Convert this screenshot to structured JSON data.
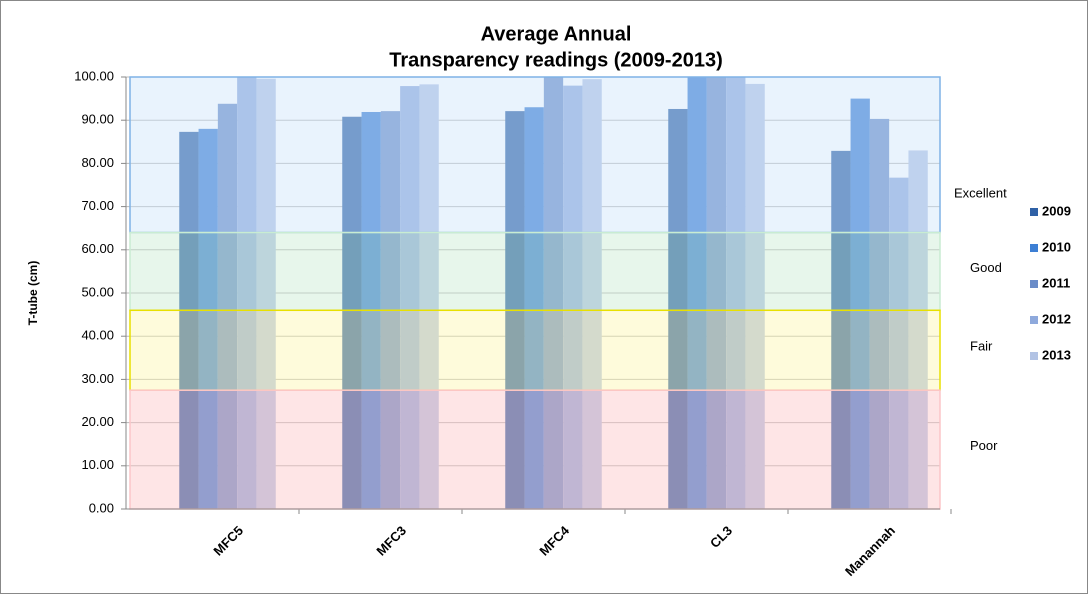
{
  "chart_data": {
    "type": "bar",
    "title": [
      "Average Annual",
      "Transparency readings (2009-2013)"
    ],
    "y_label": "T-tube (cm)",
    "categories": [
      "MFC5",
      "MFC3",
      "MFC4",
      "CL3",
      "Manannah"
    ],
    "series": [
      {
        "name": "2009",
        "color": "#2f61a6",
        "values": [
          87.3,
          90.8,
          92.1,
          92.6,
          82.9
        ]
      },
      {
        "name": "2010",
        "color": "#3d7fd4",
        "values": [
          88.0,
          91.9,
          93.0,
          100.0,
          95.0
        ]
      },
      {
        "name": "2011",
        "color": "#6a8cc8",
        "values": [
          93.8,
          92.1,
          100.0,
          100.0,
          90.3
        ]
      },
      {
        "name": "2012",
        "color": "#8ea9dc",
        "values": [
          100.0,
          97.9,
          98.0,
          100.0,
          76.7
        ]
      },
      {
        "name": "2013",
        "color": "#b2c3e4",
        "values": [
          99.6,
          98.3,
          99.5,
          98.4,
          83.0
        ]
      }
    ],
    "ylim": [
      0,
      100
    ],
    "yticks": [
      {
        "value": 0,
        "label": "0.00"
      },
      {
        "value": 10,
        "label": "10.00"
      },
      {
        "value": 20,
        "label": "20.00"
      },
      {
        "value": 30,
        "label": "30.00"
      },
      {
        "value": 40,
        "label": "40.00"
      },
      {
        "value": 50,
        "label": "50.00"
      },
      {
        "value": 60,
        "label": "60.00"
      },
      {
        "value": 70,
        "label": "70.00"
      },
      {
        "value": 80,
        "label": "80.00"
      },
      {
        "value": 90,
        "label": "90.00"
      },
      {
        "value": 100,
        "label": "100.00"
      }
    ],
    "grid": true,
    "zones": [
      {
        "label": "Excellent",
        "from": 64,
        "to": 100,
        "color": "#cfe4fb",
        "border": "#7fb2e6"
      },
      {
        "label": "Good",
        "from": 46,
        "to": 64,
        "color": "#c9ecd2",
        "border": "#c9ecd2"
      },
      {
        "label": "Fair",
        "from": 27.5,
        "to": 46,
        "color": "#fdf7b0",
        "border": "#e8e000"
      },
      {
        "label": "Poor",
        "from": 0,
        "to": 27.5,
        "color": "#fcc5c8",
        "border": "#fcc5c8"
      }
    ]
  }
}
